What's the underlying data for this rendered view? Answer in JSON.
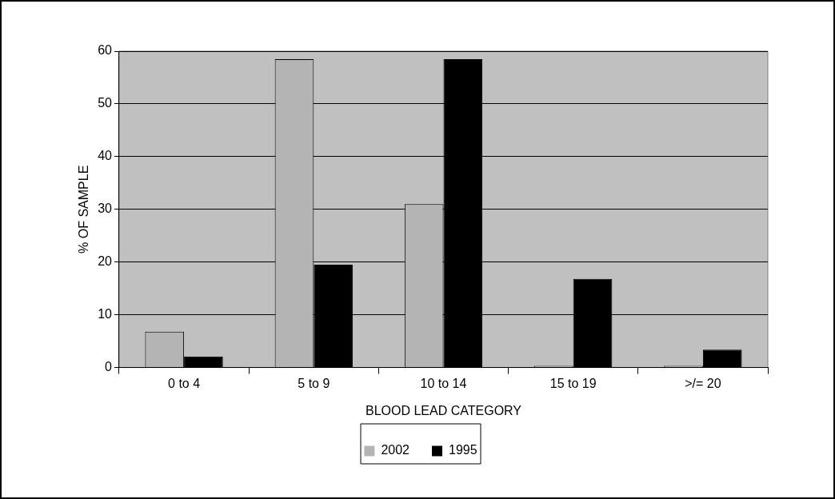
{
  "chart_data": {
    "type": "bar",
    "xlabel": "BLOOD LEAD CATEGORY",
    "ylabel": "% OF SAMPLE",
    "categories": [
      "0 to 4",
      "5 to 9",
      "10 to 14",
      "15 to 19",
      ">/= 20"
    ],
    "series": [
      {
        "name": "2002",
        "color": "#b4b4b4",
        "values": [
          6.8,
          58.5,
          31,
          0.3,
          0.3
        ]
      },
      {
        "name": "1995",
        "color": "#000000",
        "values": [
          2.1,
          19.5,
          58.5,
          16.8,
          3.4
        ]
      }
    ],
    "ylim": [
      0,
      60
    ],
    "yticks": [
      0,
      10,
      20,
      30,
      40,
      50,
      60
    ],
    "grid": "y",
    "legend": "bottom"
  }
}
